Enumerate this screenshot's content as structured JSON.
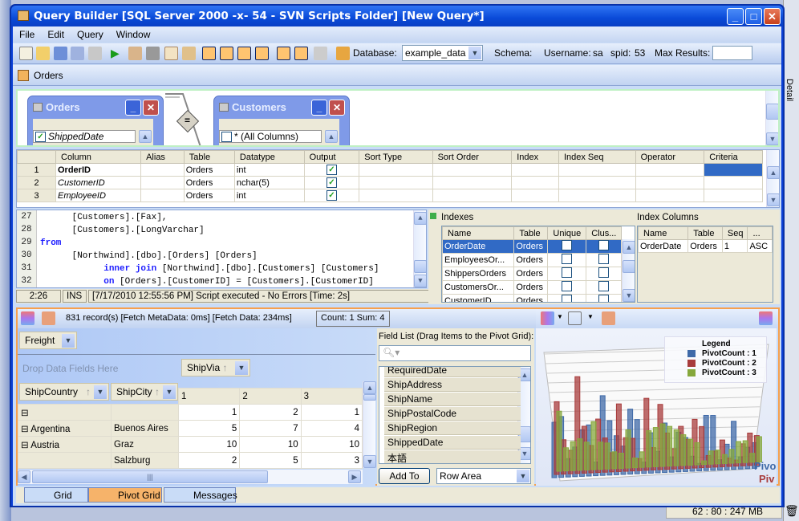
{
  "window": {
    "title": "Query Builder [SQL Server 2000 -x- 54 - SVN Scripts Folder] [New Query*]",
    "minimize": "_",
    "maximize": "□",
    "close": "✕"
  },
  "menu": [
    "File",
    "Edit",
    "Query",
    "Window"
  ],
  "toolbar": {
    "database_label": "Database:",
    "database_value": "example_data",
    "schema_label": "Schema:",
    "username_label": "Username:",
    "username_value": "sa",
    "spid_label": "spid:",
    "spid_value": "53",
    "max_results_label": "Max Results:",
    "max_results_value": ""
  },
  "query_tab": "Orders",
  "diagram": {
    "tables": [
      {
        "name": "Orders",
        "visible_column": "ShippedDate",
        "checked": true
      },
      {
        "name": "Customers",
        "visible_column": "* (All Columns)",
        "checked": false
      }
    ],
    "join_symbol": "="
  },
  "grid": {
    "headers": [
      "",
      "Column",
      "Alias",
      "Table",
      "Datatype",
      "Output",
      "Sort Type",
      "Sort Order",
      "Index",
      "Index Seq",
      "Operator",
      "Criteria"
    ],
    "rows": [
      {
        "n": "1",
        "column": "OrderID",
        "alias": "",
        "table": "Orders",
        "datatype": "int",
        "output": true
      },
      {
        "n": "2",
        "column": "CustomerID",
        "alias": "",
        "table": "Orders",
        "datatype": "nchar(5)",
        "output": true
      },
      {
        "n": "3",
        "column": "EmployeeID",
        "alias": "",
        "table": "Orders",
        "datatype": "int",
        "output": true
      }
    ]
  },
  "editor": {
    "lines": [
      {
        "n": "27",
        "text": "      [Customers].[Fax],"
      },
      {
        "n": "28",
        "text": "      [Customers].[LongVarchar]"
      },
      {
        "n": "29",
        "kw": "from",
        "text": ""
      },
      {
        "n": "30",
        "text": "      [Northwind].[dbo].[Orders] [Orders]"
      },
      {
        "n": "31",
        "indent": "            ",
        "kw": "inner join",
        "text": " [Northwind].[dbo].[Customers] [Customers]"
      },
      {
        "n": "32",
        "indent": "            ",
        "kw": "on",
        "text": " [Orders].[CustomerID] = [Customers].[CustomerID]"
      }
    ],
    "status": {
      "position": "2:26",
      "mode": "INS",
      "message": "[7/17/2010 12:55:56 PM] Script executed - No Errors [Time: 2s]"
    }
  },
  "indexes": {
    "label": "Indexes",
    "headers": [
      "Name",
      "Table",
      "Unique",
      "Clus..."
    ],
    "rows": [
      [
        "OrderDate",
        "Orders"
      ],
      [
        "EmployeesOr...",
        "Orders"
      ],
      [
        "ShippersOrders",
        "Orders"
      ],
      [
        "CustomersOr...",
        "Orders"
      ],
      [
        "CustomerID",
        "Orders"
      ]
    ]
  },
  "index_columns": {
    "label": "Index Columns",
    "headers": [
      "Name",
      "Table",
      "Seq",
      "..."
    ],
    "rows": [
      [
        "OrderDate",
        "Orders",
        "1",
        "ASC"
      ]
    ]
  },
  "results": {
    "records": "831 record(s) [Fetch MetaData: 0ms] [Fetch Data: 234ms]",
    "count_sum": "Count: 1  Sum: 4"
  },
  "pivot": {
    "filter_field": "Freight",
    "drop_hint": "Drop Data Fields Here",
    "column_field": "ShipVia",
    "row_fields": [
      "ShipCountry",
      "ShipCity"
    ],
    "col_headers": [
      "1",
      "2",
      "3"
    ],
    "rows": [
      {
        "country": "",
        "city": "",
        "vals": [
          "1",
          "2",
          "1"
        ]
      },
      {
        "country": "Argentina",
        "city": "Buenos Aires",
        "vals": [
          "5",
          "7",
          "4"
        ]
      },
      {
        "country": "Austria",
        "city": "Graz",
        "vals": [
          "10",
          "10",
          "10"
        ]
      },
      {
        "country": "",
        "city": "Salzburg",
        "vals": [
          "2",
          "5",
          "3"
        ]
      }
    ]
  },
  "field_list": {
    "label": "Field List (Drag Items to the Pivot Grid):",
    "search_placeholder": "",
    "items": [
      "RequiredDate",
      "ShipAddress",
      "ShipName",
      "ShipPostalCode",
      "ShipRegion",
      "ShippedDate",
      "本語"
    ],
    "add_button": "Add To",
    "area_value": "Row Area"
  },
  "chart": {
    "legend_title": "Legend",
    "legend": [
      {
        "name": "PivotCount : 1",
        "color": "#3f6aa8"
      },
      {
        "name": "PivotCount : 2",
        "color": "#a83c3c"
      },
      {
        "name": "PivotCount : 3",
        "color": "#86a83c"
      }
    ],
    "watermark": [
      "Pivo",
      "Piv"
    ]
  },
  "bottom_tabs": [
    "Grid",
    "Pivot Grid",
    "Messages"
  ],
  "side": {
    "detail": "Detail",
    "memory": "62 : 80 : 247 MB"
  }
}
